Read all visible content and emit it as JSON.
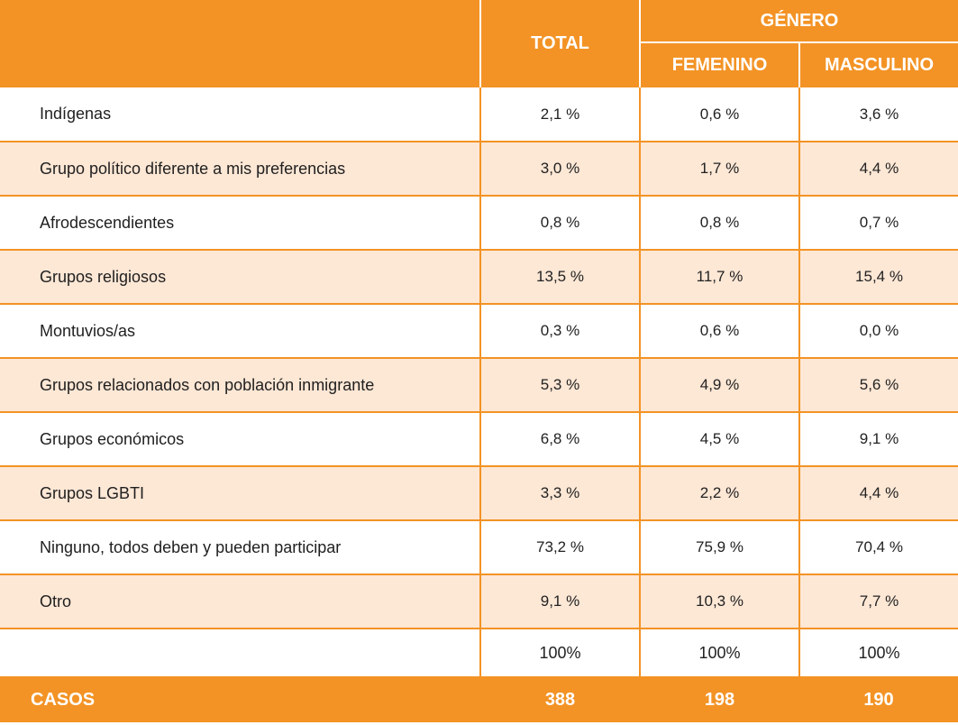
{
  "header": {
    "total_label": "TOTAL",
    "group_label": "GÉNERO",
    "female_label": "FEMENINO",
    "male_label": "MASCULINO"
  },
  "rows": [
    {
      "label": "Indígenas",
      "total": "2,1 %",
      "femenino": "0,6 %",
      "masculino": "3,6 %"
    },
    {
      "label": "Grupo político diferente a mis preferencias",
      "total": "3,0 %",
      "femenino": "1,7 %",
      "masculino": "4,4 %"
    },
    {
      "label": "Afrodescendientes",
      "total": "0,8 %",
      "femenino": "0,8 %",
      "masculino": "0,7 %"
    },
    {
      "label": "Grupos religiosos",
      "total": "13,5 %",
      "femenino": "11,7 %",
      "masculino": "15,4 %"
    },
    {
      "label": "Montuvios/as",
      "total": "0,3 %",
      "femenino": "0,6 %",
      "masculino": "0,0 %"
    },
    {
      "label": "Grupos relacionados con población inmigrante",
      "total": "5,3 %",
      "femenino": "4,9 %",
      "masculino": "5,6 %"
    },
    {
      "label": "Grupos económicos",
      "total": "6,8 %",
      "femenino": "4,5 %",
      "masculino": "9,1 %"
    },
    {
      "label": "Grupos LGBTI",
      "total": "3,3 %",
      "femenino": "2,2 %",
      "masculino": "4,4 %"
    },
    {
      "label": "Ninguno, todos deben y pueden participar",
      "total": "73,2 %",
      "femenino": "75,9 %",
      "masculino": "70,4 %"
    },
    {
      "label": "Otro",
      "total": "9,1 %",
      "femenino": "10,3 %",
      "masculino": "7,7 %"
    }
  ],
  "sum_row": {
    "total": "100%",
    "femenino": "100%",
    "masculino": "100%"
  },
  "footer": {
    "label": "CASOS",
    "total": "388",
    "femenino": "198",
    "masculino": "190"
  },
  "colors": {
    "accent": "#f39325",
    "alt_row": "#fde7d5"
  }
}
